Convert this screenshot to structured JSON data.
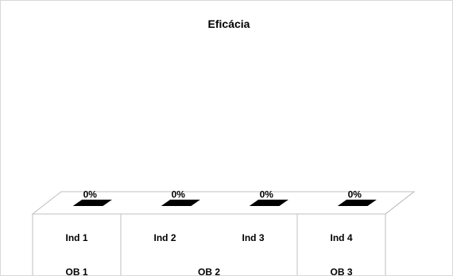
{
  "chart_data": {
    "type": "bar",
    "title": "Eficácia",
    "categories": [
      "Ind  1",
      "Ind  2",
      "Ind 3",
      "Ind  4"
    ],
    "groups": [
      "OB 1",
      "OB 2",
      "OB 3"
    ],
    "group_spans": [
      1,
      2,
      1
    ],
    "series": [
      {
        "values": [
          0,
          0,
          0,
          0
        ],
        "data_labels": [
          "0%",
          "0%",
          "0%",
          "0%"
        ]
      }
    ],
    "ylim": [
      0,
      1
    ],
    "y_axis_visible": false,
    "grid": false,
    "legend": "none",
    "three_d": true,
    "bar_color": "#000000",
    "floor_color": "#ffffff",
    "line_color": "#bfbfbf"
  }
}
